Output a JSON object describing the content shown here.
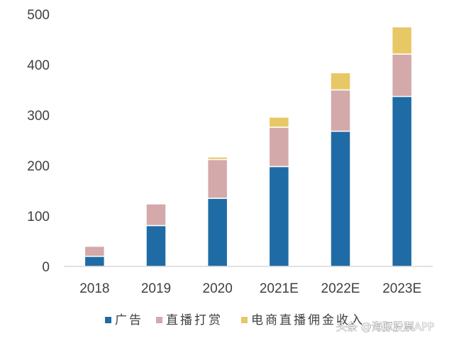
{
  "chart_data": {
    "type": "bar",
    "stacked": true,
    "title": "",
    "xlabel": "",
    "ylabel": "",
    "categories": [
      "2018",
      "2019",
      "2020",
      "2021E",
      "2022E",
      "2023E"
    ],
    "series": [
      {
        "name": "广告",
        "color": "#1f6ba5",
        "values": [
          20,
          81,
          135,
          198,
          268,
          337
        ]
      },
      {
        "name": "直播打赏",
        "color": "#d4a9aa",
        "values": [
          20,
          43,
          77,
          78,
          82,
          84
        ]
      },
      {
        "name": "电商直播佣金收入",
        "color": "#e8c766",
        "values": [
          0,
          0,
          5,
          20,
          34,
          54
        ]
      }
    ],
    "ylim": [
      0,
      500
    ],
    "yticks": [
      0,
      100,
      200,
      300,
      400,
      500
    ],
    "grid": false,
    "legend": "bottom"
  },
  "watermark": {
    "text": "头条 @海豚股票APP"
  }
}
